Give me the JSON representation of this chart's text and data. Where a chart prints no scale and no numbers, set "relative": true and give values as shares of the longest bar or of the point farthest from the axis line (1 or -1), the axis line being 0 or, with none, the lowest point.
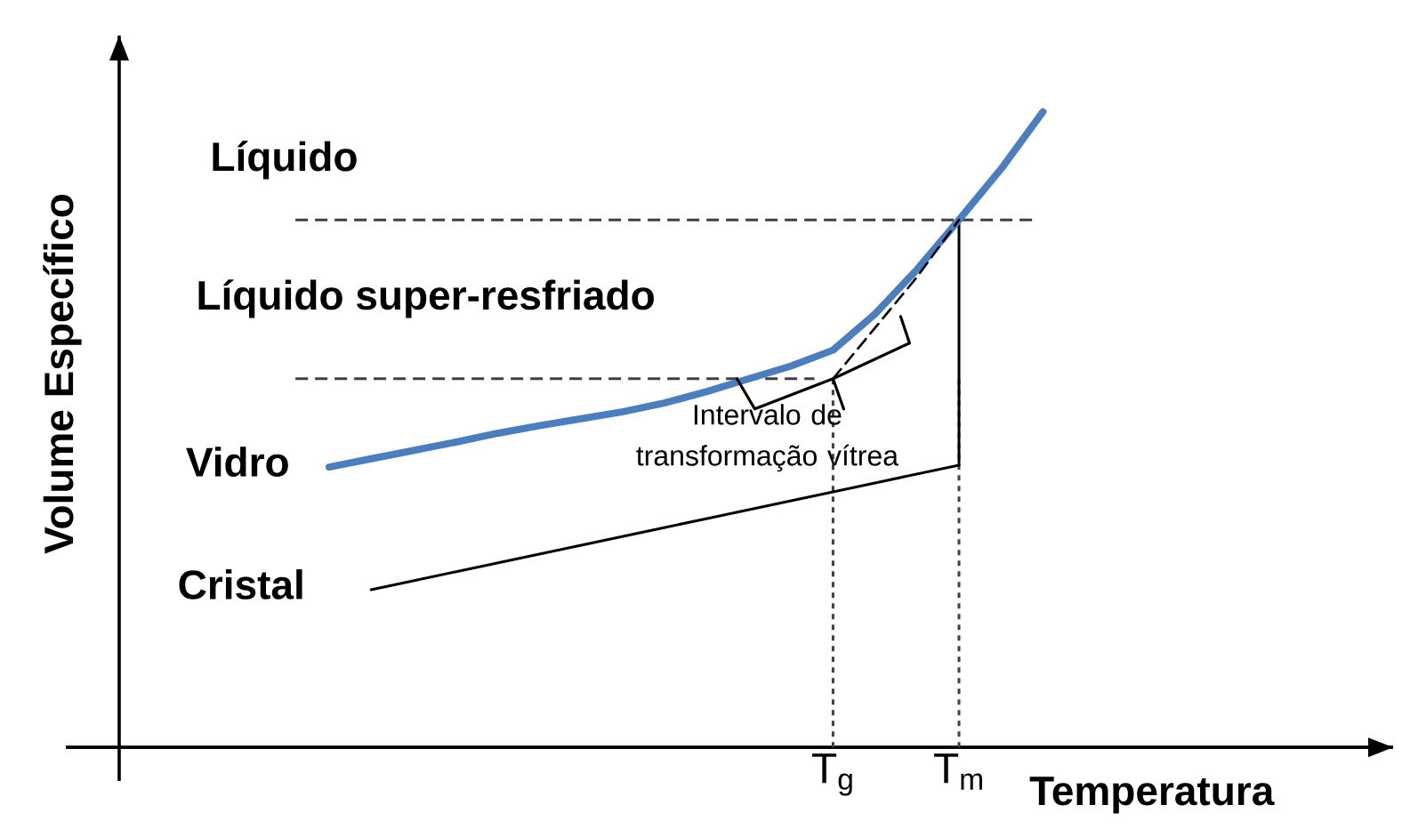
{
  "chart_data": {
    "type": "line",
    "relative": true,
    "xlabel": "Temperatura",
    "ylabel": "Volume Específico",
    "categories": [
      null,
      null,
      null,
      null,
      null,
      null,
      null,
      null,
      null,
      null,
      null,
      null,
      null,
      null,
      null,
      null,
      null,
      "T$_{g}$",
      null,
      null,
      "T$_{m}$",
      null,
      null
    ],
    "tick_labels": "x",
    "series": [
      {
        "name": "Vidro",
        "color": "#4a7ebf",
        "values": [
          null,
          null,
          null,
          null,
          null,
          0.441,
          0.454,
          0.467,
          0.48,
          0.494,
          0.506,
          0.517,
          0.528,
          0.542,
          0.56,
          0.58,
          0.6,
          0.625,
          0.682,
          0.752,
          0.83,
          0.91,
          1.0
        ]
      },
      {
        "color": "#000000",
        "line_style": "dashed",
        "values": [
          null,
          null,
          null,
          null,
          null,
          null,
          null,
          null,
          null,
          null,
          null,
          null,
          null,
          null,
          null,
          null,
          null,
          0.58,
          0.66,
          0.74,
          0.83,
          null,
          null
        ]
      },
      {
        "name": "Cristal",
        "color": "#000000",
        "values": [
          null,
          null,
          null,
          null,
          null,
          null,
          0.248,
          0.262,
          0.276,
          0.29,
          0.304,
          0.318,
          0.332,
          0.346,
          0.36,
          0.374,
          0.388,
          0.402,
          0.416,
          0.43,
          0.444,
          null,
          null
        ]
      }
    ],
    "ref_lines": [
      {
        "axis": "y",
        "value": 0.83,
        "line_style": "dashed",
        "color": "#404040"
      },
      {
        "axis": "y",
        "value": 0.58,
        "line_style": "dashed",
        "color": "#404040"
      },
      {
        "axis": "x",
        "value": "T$_{g}$",
        "line_style": "dotted",
        "color": "#404040"
      },
      {
        "axis": "x",
        "value": "T$_{m}$",
        "line_style": "dotted",
        "color": "#404040"
      },
      {
        "axis": "x",
        "value": "T$_{m}$",
        "line_style": "solid",
        "color": "#000000"
      }
    ],
    "annotations": [
      "Líquido",
      "Líquido super-resfriado",
      {
        "text": "Intervalo de transformação vítrea",
        "x": "T$_{g}$",
        "y": 0.58
      }
    ]
  }
}
